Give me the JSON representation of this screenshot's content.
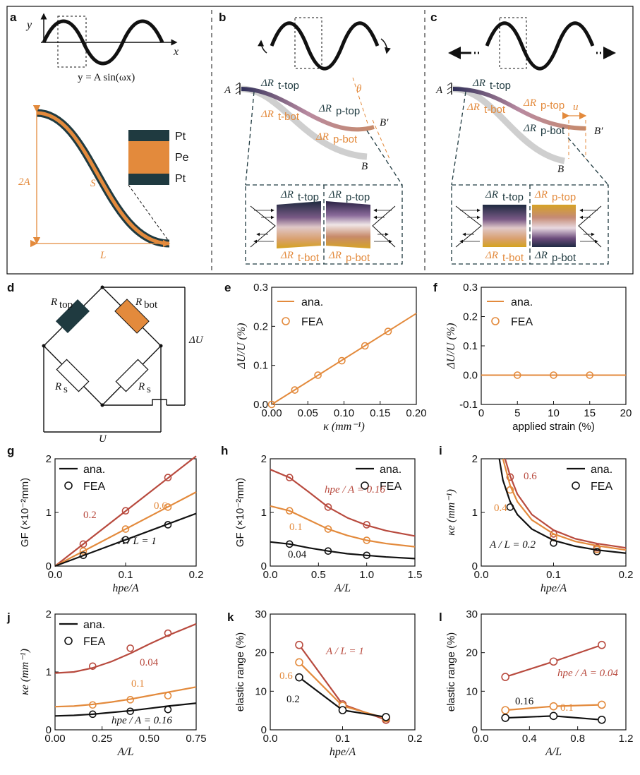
{
  "colors": {
    "black": "#111111",
    "orange": "#e38a3c",
    "red": "#b84a3e",
    "dark_teal": "#1f3a40",
    "grey": "#cfcfcf"
  },
  "top": {
    "a": {
      "label": "a",
      "y_axis": "y",
      "x_axis": "x",
      "equation": "y = A sin(ωx)",
      "two_a": "2A",
      "s": "S",
      "l": "L",
      "layers": [
        "Pt",
        "Pe",
        "Pt"
      ]
    },
    "b": {
      "label": "b",
      "A": "A",
      "B": "B",
      "Bp": "B′",
      "theta": "θ",
      "dr_t_top": "ΔR",
      "dr_t_top_sub": "t-top",
      "dr_p_top": "ΔR",
      "dr_p_top_sub": "p-top",
      "dr_t_bot": "ΔR",
      "dr_t_bot_sub": "t-bot",
      "dr_p_bot": "ΔR",
      "dr_p_bot_sub": "p-bot"
    },
    "c": {
      "label": "c",
      "A": "A",
      "B": "B",
      "Bp": "B′",
      "u": "u",
      "dr_t_top": "ΔR",
      "dr_t_top_sub": "t-top",
      "dr_p_top": "ΔR",
      "dr_p_top_sub": "p-top",
      "dr_t_bot": "ΔR",
      "dr_t_bot_sub": "t-bot",
      "dr_p_bot": "ΔR",
      "dr_p_bot_sub": "p-bot"
    }
  },
  "d": {
    "label": "d",
    "r_top": "R",
    "r_top_sub": "top",
    "r_bot": "R",
    "r_bot_sub": "bot",
    "r_s": "R",
    "r_s_sub": "s",
    "delta_u": "ΔU",
    "u": "U"
  },
  "chart_data": [
    {
      "id": "e",
      "type": "line",
      "ylabel": "ΔU/U (%)",
      "xlabel": "κ (mm⁻¹)",
      "xlim": [
        0,
        0.2
      ],
      "ylim": [
        0,
        0.3
      ],
      "xticks": [
        "0.00",
        "0.05",
        "0.10",
        "0.15",
        "0.20"
      ],
      "yticks": [
        "0.0",
        "0.1",
        "0.2",
        "0.3"
      ],
      "legend": [
        "ana.",
        "FEA"
      ],
      "series": [
        {
          "name": "ana.",
          "x": [
            0,
            0.2
          ],
          "y": [
            0,
            0.233
          ]
        },
        {
          "name": "FEA",
          "x": [
            0,
            0.032,
            0.064,
            0.097,
            0.129,
            0.161
          ],
          "y": [
            0,
            0.037,
            0.075,
            0.112,
            0.15,
            0.187
          ]
        }
      ]
    },
    {
      "id": "f",
      "type": "line",
      "ylabel": "ΔU/U (%)",
      "xlabel": "applied strain (%)",
      "xlim": [
        0,
        20
      ],
      "ylim": [
        -0.1,
        0.3
      ],
      "xticks": [
        "0",
        "5",
        "10",
        "15",
        "20"
      ],
      "yticks": [
        "-0.1",
        "0.0",
        "0.1",
        "0.2",
        "0.3"
      ],
      "legend": [
        "ana.",
        "FEA"
      ],
      "series": [
        {
          "name": "ana.",
          "x": [
            0,
            20
          ],
          "y": [
            0,
            0
          ]
        },
        {
          "name": "FEA",
          "x": [
            5,
            10,
            15
          ],
          "y": [
            0,
            0,
            0
          ]
        }
      ]
    },
    {
      "id": "g",
      "type": "line",
      "ylabel": "GF (×10⁻²mm)",
      "xlabel": "hpe/A",
      "xlim": [
        0,
        0.2
      ],
      "ylim": [
        0,
        2
      ],
      "xticks": [
        "0.0",
        "0.1",
        "0.2"
      ],
      "yticks": [
        "0",
        "1",
        "2"
      ],
      "legend": [
        "ana.",
        "FEA"
      ],
      "annotations": [
        "0.2",
        "0.6",
        "A / L = 1"
      ],
      "series": [
        {
          "name": "A/L=0.2",
          "x": [
            0,
            0.2
          ],
          "y": [
            0,
            2.05
          ],
          "pts": [
            [
              0.04,
              0.41
            ],
            [
              0.1,
              1.03
            ],
            [
              0.16,
              1.65
            ]
          ]
        },
        {
          "name": "A/L=0.6",
          "x": [
            0,
            0.2
          ],
          "y": [
            0,
            1.38
          ],
          "pts": [
            [
              0.04,
              0.28
            ],
            [
              0.1,
              0.69
            ],
            [
              0.16,
              1.1
            ]
          ]
        },
        {
          "name": "A/L=1",
          "x": [
            0,
            0.2
          ],
          "y": [
            0,
            0.98
          ],
          "pts": [
            [
              0.04,
              0.2
            ],
            [
              0.1,
              0.49
            ],
            [
              0.16,
              0.77
            ]
          ]
        }
      ]
    },
    {
      "id": "h",
      "type": "line",
      "ylabel": "GF (×10⁻²mm)",
      "xlabel": "A/L",
      "xlim": [
        0,
        1.5
      ],
      "ylim": [
        0,
        2
      ],
      "xticks": [
        "0.0",
        "0.5",
        "1.0",
        "1.5"
      ],
      "yticks": [
        "0",
        "1",
        "2"
      ],
      "legend": [
        "ana.",
        "FEA"
      ],
      "annotations": [
        "hpe / A = 0.16",
        "0.1",
        "0.04"
      ],
      "series": [
        {
          "name": "0.16",
          "x": [
            0,
            0.2,
            0.4,
            0.6,
            0.8,
            1.0,
            1.2,
            1.5
          ],
          "y": [
            1.8,
            1.65,
            1.38,
            1.1,
            0.9,
            0.76,
            0.66,
            0.56
          ],
          "pts": [
            [
              0.2,
              1.65
            ],
            [
              0.6,
              1.1
            ],
            [
              1.0,
              0.77
            ]
          ]
        },
        {
          "name": "0.1",
          "x": [
            0,
            0.2,
            0.4,
            0.6,
            0.8,
            1.0,
            1.2,
            1.5
          ],
          "y": [
            1.12,
            1.03,
            0.86,
            0.69,
            0.57,
            0.48,
            0.42,
            0.36
          ],
          "pts": [
            [
              0.2,
              1.03
            ],
            [
              0.6,
              0.69
            ],
            [
              1.0,
              0.48
            ]
          ]
        },
        {
          "name": "0.04",
          "x": [
            0,
            0.2,
            0.4,
            0.6,
            0.8,
            1.0,
            1.2,
            1.5
          ],
          "y": [
            0.45,
            0.41,
            0.34,
            0.28,
            0.23,
            0.2,
            0.17,
            0.14
          ],
          "pts": [
            [
              0.2,
              0.41
            ],
            [
              0.6,
              0.28
            ],
            [
              1.0,
              0.2
            ]
          ]
        }
      ]
    },
    {
      "id": "i",
      "type": "line",
      "ylabel": "κe (mm⁻¹)",
      "xlabel": "hpe/A",
      "xlim": [
        0,
        0.2
      ],
      "ylim": [
        0,
        2
      ],
      "xticks": [
        "0.0",
        "0.1",
        "0.2"
      ],
      "yticks": [
        "0",
        "1",
        "2"
      ],
      "legend": [
        "ana.",
        "FEA"
      ],
      "annotations": [
        "0.6",
        "0.4",
        "A / L = 0.2"
      ],
      "series": [
        {
          "name": "0.6",
          "x": [
            0.033,
            0.04,
            0.05,
            0.07,
            0.1,
            0.13,
            0.16,
            0.2
          ],
          "y": [
            2.0,
            1.68,
            1.34,
            0.96,
            0.67,
            0.51,
            0.42,
            0.34
          ],
          "pts": [
            [
              0.04,
              1.66
            ],
            [
              0.1,
              0.6
            ],
            [
              0.16,
              0.34
            ]
          ]
        },
        {
          "name": "0.4",
          "x": [
            0.03,
            0.04,
            0.05,
            0.07,
            0.1,
            0.13,
            0.16,
            0.2
          ],
          "y": [
            2.0,
            1.5,
            1.2,
            0.86,
            0.6,
            0.46,
            0.38,
            0.3
          ],
          "pts": [
            [
              0.04,
              1.42
            ],
            [
              0.1,
              0.53
            ],
            [
              0.16,
              0.31
            ]
          ]
        },
        {
          "name": "0.2",
          "x": [
            0.025,
            0.03,
            0.04,
            0.05,
            0.07,
            0.1,
            0.13,
            0.16,
            0.2
          ],
          "y": [
            2.0,
            1.6,
            1.2,
            0.96,
            0.69,
            0.48,
            0.37,
            0.3,
            0.24
          ],
          "pts": [
            [
              0.04,
              1.1
            ],
            [
              0.1,
              0.43
            ],
            [
              0.16,
              0.27
            ]
          ]
        }
      ]
    },
    {
      "id": "j",
      "type": "line",
      "ylabel": "κe (mm⁻¹)",
      "xlabel": "A/L",
      "xlim": [
        0,
        0.75
      ],
      "ylim": [
        0,
        2
      ],
      "xticks": [
        "0.00",
        "0.25",
        "0.50",
        "0.75"
      ],
      "yticks": [
        "0",
        "1",
        "2"
      ],
      "legend": [
        "ana.",
        "FEA"
      ],
      "annotations": [
        "0.04",
        "0.1",
        "hpe / A = 0.16"
      ],
      "series": [
        {
          "name": "0.04",
          "x": [
            0,
            0.1,
            0.2,
            0.3,
            0.4,
            0.5,
            0.6,
            0.75
          ],
          "y": [
            0.98,
            1.0,
            1.07,
            1.18,
            1.32,
            1.48,
            1.63,
            1.83
          ],
          "pts": [
            [
              0.2,
              1.1
            ],
            [
              0.4,
              1.41
            ],
            [
              0.6,
              1.67
            ]
          ]
        },
        {
          "name": "0.1",
          "x": [
            0,
            0.1,
            0.2,
            0.3,
            0.4,
            0.5,
            0.6,
            0.75
          ],
          "y": [
            0.4,
            0.41,
            0.44,
            0.48,
            0.53,
            0.59,
            0.65,
            0.74
          ],
          "pts": [
            [
              0.2,
              0.43
            ],
            [
              0.4,
              0.52
            ],
            [
              0.6,
              0.59
            ]
          ]
        },
        {
          "name": "0.16",
          "x": [
            0,
            0.1,
            0.2,
            0.3,
            0.4,
            0.5,
            0.6,
            0.75
          ],
          "y": [
            0.24,
            0.25,
            0.27,
            0.3,
            0.33,
            0.37,
            0.41,
            0.46
          ],
          "pts": [
            [
              0.2,
              0.27
            ],
            [
              0.4,
              0.32
            ],
            [
              0.6,
              0.35
            ]
          ]
        }
      ]
    },
    {
      "id": "k",
      "type": "line",
      "ylabel": "elastic range (%)",
      "xlabel": "hpe/A",
      "xlim": [
        0,
        0.2
      ],
      "ylim": [
        0,
        30
      ],
      "xticks": [
        "0.0",
        "0.1",
        "0.2"
      ],
      "yticks": [
        "0",
        "10",
        "20",
        "30"
      ],
      "annotations": [
        "A / L = 1",
        "0.6",
        "0.2"
      ],
      "series": [
        {
          "name": "1",
          "x": [
            0.04,
            0.1,
            0.16
          ],
          "y": [
            22,
            6.6,
            2.6
          ]
        },
        {
          "name": "0.6",
          "x": [
            0.04,
            0.1,
            0.16
          ],
          "y": [
            17.5,
            6.2,
            3.0
          ]
        },
        {
          "name": "0.2",
          "x": [
            0.04,
            0.1,
            0.16
          ],
          "y": [
            13.6,
            5.1,
            3.3
          ]
        }
      ]
    },
    {
      "id": "l",
      "type": "line",
      "ylabel": "elastic range (%)",
      "xlabel": "A/L",
      "xlim": [
        0,
        1.2
      ],
      "ylim": [
        0,
        30
      ],
      "xticks": [
        "0.0",
        "0.4",
        "0.8",
        "1.2"
      ],
      "yticks": [
        "0",
        "10",
        "20",
        "30"
      ],
      "annotations": [
        "hpe / A = 0.04",
        "0.1",
        "0.16"
      ],
      "series": [
        {
          "name": "0.04",
          "x": [
            0.2,
            0.6,
            1.0
          ],
          "y": [
            13.7,
            17.7,
            22.0
          ]
        },
        {
          "name": "0.1",
          "x": [
            0.2,
            0.6,
            1.0
          ],
          "y": [
            5.1,
            6.1,
            6.5
          ]
        },
        {
          "name": "0.16",
          "x": [
            0.2,
            0.6,
            1.0
          ],
          "y": [
            3.1,
            3.6,
            2.6
          ]
        }
      ]
    }
  ]
}
